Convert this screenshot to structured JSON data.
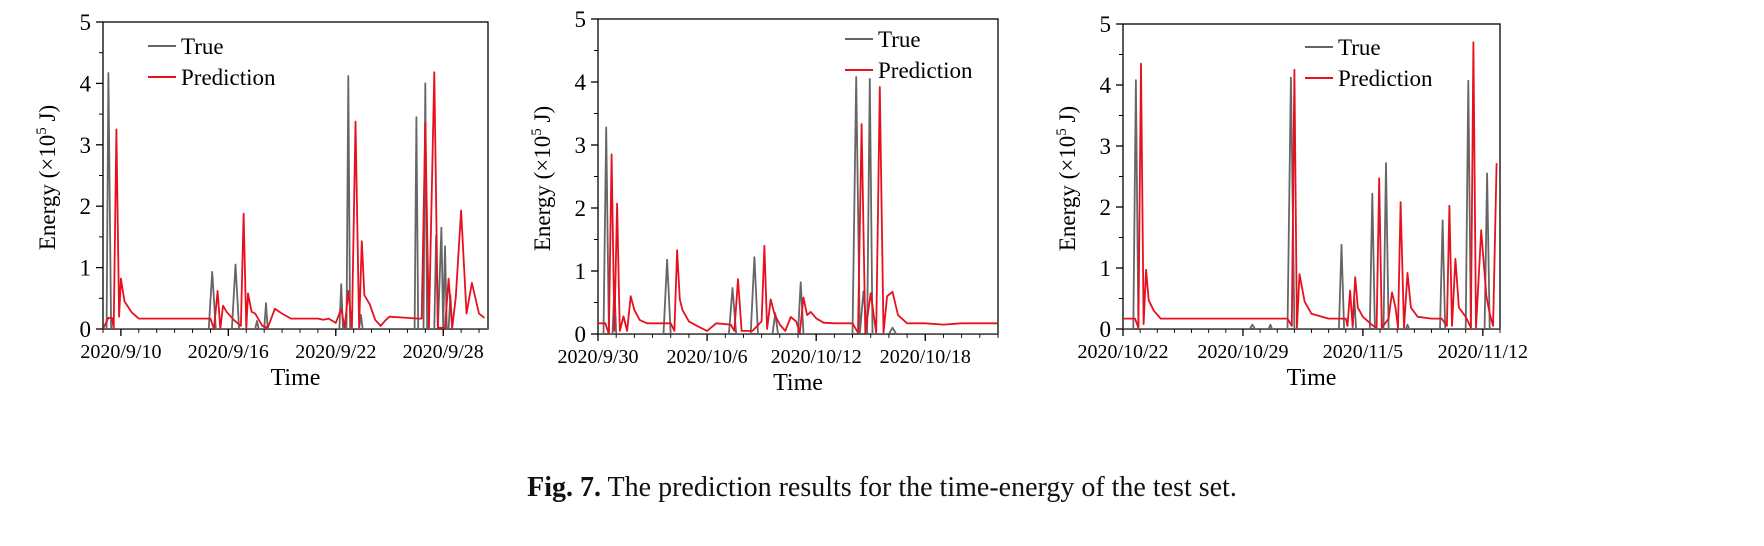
{
  "caption": {
    "label": "Fig. 7.",
    "text": "The prediction results for the time-energy of the test set."
  },
  "colors": {
    "true": "#666666",
    "prediction": "#e8101e",
    "axis": "#000000"
  },
  "chart_data": [
    {
      "type": "line",
      "title": "",
      "xlabel": "Time",
      "ylabel": "Energy (×10^5 J)",
      "ylabel_parts": {
        "pre": "Energy (×10",
        "sup": "5",
        "post": " J)"
      },
      "ylim": [
        0,
        5
      ],
      "yticks": [
        0,
        1,
        2,
        3,
        4,
        5
      ],
      "xlim": [
        0,
        21.5
      ],
      "xticks": [
        {
          "pos": 1,
          "label": "2020/9/10"
        },
        {
          "pos": 7,
          "label": "2020/9/16"
        },
        {
          "pos": 13,
          "label": "2020/9/22"
        },
        {
          "pos": 19,
          "label": "2020/9/28"
        }
      ],
      "legend": {
        "placement": "top-left",
        "labels": [
          "True",
          "Prediction"
        ]
      },
      "series": [
        {
          "name": "True",
          "key": "true",
          "x": [
            0,
            0.2,
            0.3,
            0.45,
            0.6,
            1,
            5,
            5.9,
            6.1,
            6.3,
            7.2,
            7.4,
            7.6,
            8.5,
            8.6,
            8.7,
            9,
            9.1,
            9.2,
            12,
            13.2,
            13.3,
            13.4,
            13.6,
            13.7,
            13.8,
            14,
            14.3,
            14.4,
            14.5,
            16,
            17.4,
            17.5,
            17.6,
            17.9,
            18,
            18.1,
            18.5,
            18.6,
            18.7,
            18.9,
            19,
            19.1,
            19.2,
            19.3,
            19.4,
            19.5,
            19.6,
            19.7,
            21.5
          ],
          "values": [
            0,
            0,
            4.17,
            0,
            0,
            0,
            0,
            0,
            0.93,
            0,
            0,
            1.05,
            0,
            0,
            0.13,
            0,
            0,
            0.42,
            0,
            0,
            0,
            0.73,
            0,
            0,
            4.12,
            0,
            0,
            0,
            0.23,
            0,
            0,
            0,
            3.45,
            0,
            0,
            4.0,
            0,
            0,
            1.52,
            0,
            1.65,
            0,
            1.35,
            0,
            0,
            0.55,
            0,
            0,
            0,
            0
          ]
        },
        {
          "name": "Prediction",
          "key": "prediction",
          "x": [
            0,
            0.3,
            0.5,
            0.6,
            0.75,
            0.9,
            1.0,
            1.2,
            1.6,
            2,
            3,
            4,
            5,
            6.0,
            6.2,
            6.4,
            6.55,
            6.7,
            6.9,
            7.3,
            7.7,
            7.85,
            8.0,
            8.1,
            8.3,
            8.5,
            8.7,
            8.9,
            9.2,
            9.6,
            10,
            10.5,
            11,
            12,
            12.3,
            12.6,
            13,
            13.3,
            13.5,
            13.7,
            13.9,
            14.1,
            14.3,
            14.45,
            14.6,
            14.9,
            15.2,
            15.5,
            15.8,
            16,
            17,
            17.6,
            17.8,
            18.0,
            18.2,
            18.5,
            18.7,
            19.1,
            19.3,
            19.5,
            19.7,
            20,
            20.3,
            20.6,
            21,
            21.3
          ],
          "values": [
            0,
            0.18,
            0.18,
            0,
            3.25,
            0.2,
            0.82,
            0.45,
            0.27,
            0.17,
            0.17,
            0.17,
            0.17,
            0.17,
            0,
            0.62,
            0,
            0.38,
            0.28,
            0.15,
            0.05,
            1.88,
            0,
            0.58,
            0.28,
            0.25,
            0.15,
            0.05,
            0.02,
            0.33,
            0.25,
            0.17,
            0.17,
            0.17,
            0.15,
            0.17,
            0.1,
            0.33,
            0.02,
            0.62,
            0.02,
            3.38,
            0.03,
            1.43,
            0.55,
            0.4,
            0.15,
            0.05,
            0.15,
            0.2,
            0.18,
            0.17,
            0.17,
            3.35,
            0.02,
            4.18,
            0.02,
            0.02,
            0.82,
            0.02,
            0.52,
            1.93,
            0.25,
            0.75,
            0.25,
            0.18
          ]
        }
      ]
    },
    {
      "type": "line",
      "title": "",
      "xlabel": "Time",
      "ylabel": "Energy (×10^5 J)",
      "ylabel_parts": {
        "pre": "Energy (×10",
        "sup": "5",
        "post": " J)"
      },
      "ylim": [
        0,
        5
      ],
      "yticks": [
        0,
        1,
        2,
        3,
        4,
        5
      ],
      "xlim": [
        0,
        22
      ],
      "xticks": [
        {
          "pos": 0,
          "label": "2020/9/30"
        },
        {
          "pos": 6,
          "label": "2020/10/6"
        },
        {
          "pos": 12,
          "label": "2020/10/12"
        },
        {
          "pos": 18,
          "label": "2020/10/18"
        }
      ],
      "legend": {
        "placement": "top-right",
        "labels": [
          "True",
          "Prediction"
        ]
      },
      "series": [
        {
          "name": "True",
          "key": "true",
          "x": [
            0,
            0.3,
            0.45,
            0.6,
            0.8,
            0.9,
            1.0,
            3.6,
            3.8,
            4.0,
            7.2,
            7.4,
            7.6,
            8.4,
            8.6,
            8.8,
            9.6,
            9.75,
            9.9,
            11.0,
            11.15,
            11.3,
            14,
            14.2,
            14.4,
            14.6,
            14.8,
            14.95,
            15.1,
            16,
            16.2,
            16.4,
            22
          ],
          "values": [
            0,
            0,
            3.28,
            0,
            0,
            0.75,
            0,
            0,
            1.18,
            0,
            0,
            0.73,
            0,
            0,
            1.22,
            0,
            0,
            0.33,
            0,
            0,
            0.82,
            0,
            0,
            4.08,
            0,
            0.68,
            0,
            4.05,
            0,
            0,
            0.1,
            0,
            0
          ]
        },
        {
          "name": "Prediction",
          "key": "prediction",
          "x": [
            0,
            0.4,
            0.6,
            0.75,
            0.9,
            1.05,
            1.2,
            1.4,
            1.6,
            1.8,
            2.0,
            2.3,
            2.7,
            3.0,
            4.0,
            4.2,
            4.35,
            4.5,
            4.65,
            5.0,
            5.5,
            6.0,
            6.5,
            7.3,
            7.5,
            7.7,
            7.9,
            8.5,
            9.0,
            9.15,
            9.3,
            9.5,
            9.7,
            10.0,
            10.3,
            10.6,
            10.9,
            11.1,
            11.3,
            11.5,
            11.7,
            12.0,
            12.4,
            13,
            14,
            14.3,
            14.5,
            14.7,
            15.0,
            15.3,
            15.5,
            15.7,
            15.9,
            16.2,
            16.5,
            17,
            18,
            19,
            20,
            21,
            22
          ],
          "values": [
            0.17,
            0.17,
            0,
            2.85,
            0.05,
            2.07,
            0.05,
            0.28,
            0.05,
            0.6,
            0.38,
            0.22,
            0.17,
            0.17,
            0.17,
            0.05,
            1.33,
            0.55,
            0.38,
            0.2,
            0.12,
            0.05,
            0.17,
            0.15,
            0.05,
            0.87,
            0.05,
            0.05,
            0.2,
            1.4,
            0.08,
            0.55,
            0.32,
            0.15,
            0.05,
            0.27,
            0.2,
            0.02,
            0.58,
            0.3,
            0.35,
            0.25,
            0.18,
            0.17,
            0.17,
            0.02,
            3.33,
            0.02,
            0.65,
            0.02,
            3.92,
            0.02,
            0.6,
            0.67,
            0.3,
            0.17,
            0.17,
            0.15,
            0.17,
            0.17,
            0.17
          ]
        }
      ]
    },
    {
      "type": "line",
      "title": "",
      "xlabel": "Time",
      "ylabel": "Energy (×10^5 J)",
      "ylabel_parts": {
        "pre": "Energy (×10",
        "sup": "5",
        "post": " J)"
      },
      "ylim": [
        0,
        5
      ],
      "yticks": [
        0,
        1,
        2,
        3,
        4,
        5
      ],
      "xlim": [
        0,
        22
      ],
      "xticks": [
        {
          "pos": 0,
          "label": "2020/10/22"
        },
        {
          "pos": 7,
          "label": "2020/10/29"
        },
        {
          "pos": 14,
          "label": "2020/11/5"
        },
        {
          "pos": 21,
          "label": "2020/11/12"
        }
      ],
      "legend": {
        "placement": "top-right",
        "labels": [
          "True",
          "Prediction"
        ]
      },
      "series": [
        {
          "name": "True",
          "key": "true",
          "x": [
            0,
            0.6,
            0.75,
            0.9,
            7.4,
            7.55,
            7.7,
            8.0,
            8.5,
            8.6,
            8.7,
            9.6,
            9.8,
            10.0,
            12.6,
            12.75,
            12.9,
            13.4,
            13.5,
            13.6,
            14.4,
            14.55,
            14.7,
            15.2,
            15.35,
            15.5,
            16,
            16.5,
            16.6,
            16.7,
            18.5,
            18.65,
            18.8,
            20.0,
            20.15,
            20.3,
            21.1,
            21.25,
            21.4,
            22
          ],
          "values": [
            0,
            0,
            4.08,
            0,
            0,
            0.07,
            0,
            0,
            0,
            0.07,
            0,
            0,
            4.12,
            0,
            0,
            1.38,
            0,
            0,
            0.5,
            0,
            0,
            2.22,
            0,
            0,
            2.72,
            0,
            0,
            0,
            0.07,
            0,
            0,
            1.78,
            0,
            0,
            4.07,
            0,
            0,
            2.55,
            0,
            0
          ]
        },
        {
          "name": "Prediction",
          "key": "prediction",
          "x": [
            0,
            0.7,
            0.9,
            1.05,
            1.2,
            1.35,
            1.5,
            1.8,
            2.2,
            3,
            5,
            7,
            9,
            9.6,
            9.85,
            10.0,
            10.15,
            10.3,
            10.6,
            11,
            12,
            13.0,
            13.1,
            13.25,
            13.4,
            13.55,
            13.7,
            14.0,
            14.6,
            14.8,
            14.95,
            15.1,
            15.5,
            15.7,
            15.9,
            16.05,
            16.2,
            16.4,
            16.6,
            16.8,
            17.2,
            18,
            18.6,
            18.9,
            19.05,
            19.2,
            19.4,
            19.6,
            20.0,
            20.3,
            20.45,
            20.6,
            20.9,
            21.2,
            21.4,
            21.6,
            21.8
          ],
          "values": [
            0.17,
            0.17,
            0.02,
            4.35,
            0.08,
            0.97,
            0.47,
            0.3,
            0.17,
            0.17,
            0.17,
            0.17,
            0.17,
            0.17,
            0.05,
            4.25,
            0.02,
            0.9,
            0.45,
            0.25,
            0.17,
            0.17,
            0.05,
            0.63,
            0.05,
            0.85,
            0.35,
            0.2,
            0.05,
            0.02,
            2.47,
            0.02,
            0.17,
            0.6,
            0.35,
            0.02,
            2.08,
            0.02,
            0.92,
            0.35,
            0.2,
            0.17,
            0.17,
            0.05,
            2.02,
            0.05,
            1.15,
            0.35,
            0.2,
            0.02,
            4.7,
            0.02,
            1.62,
            0.55,
            0.25,
            0.05,
            2.72
          ]
        }
      ]
    }
  ]
}
